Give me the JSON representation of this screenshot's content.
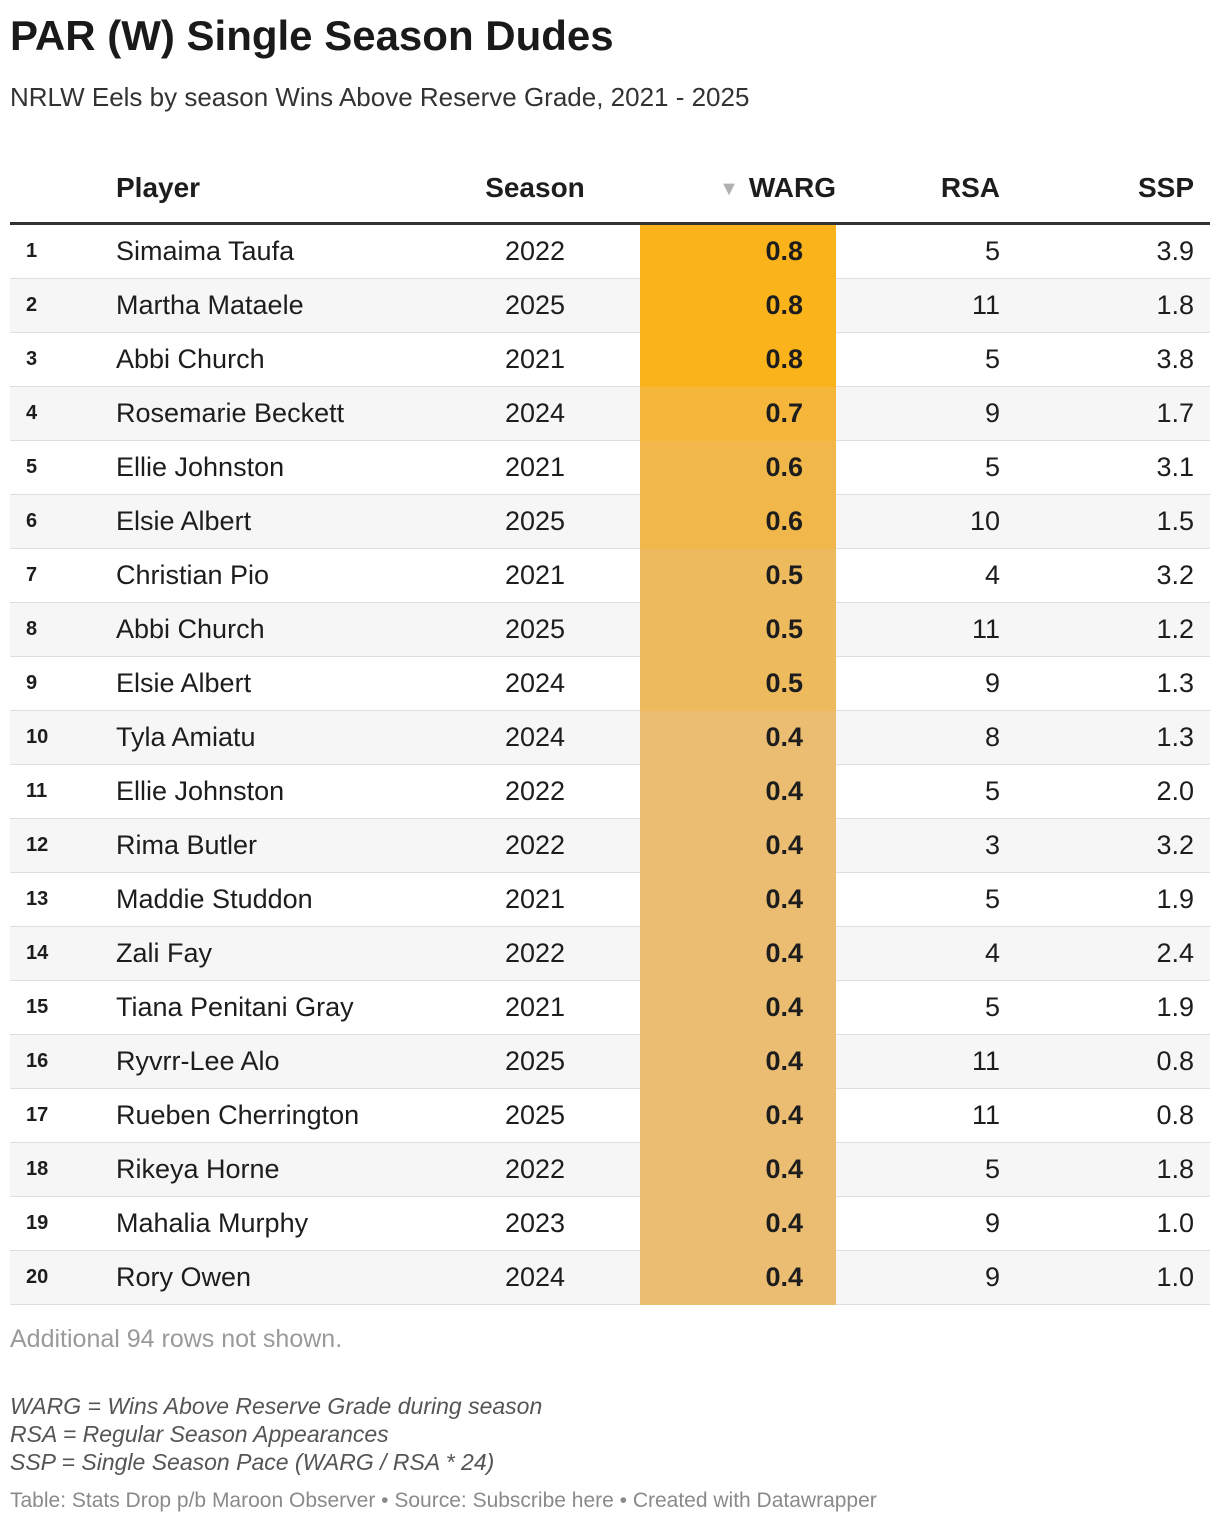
{
  "title": "PAR (W) Single Season Dudes",
  "subtitle": "NRLW Eels by season Wins Above Reserve Grade, 2021 - 2025",
  "chart_data": {
    "type": "table",
    "columns": [
      "",
      "Player",
      "Season",
      "WARG",
      "RSA",
      "SSP"
    ],
    "sort_indicator": "▼",
    "sorted_column": "WARG",
    "highlight_color_scale": {
      "column": "WARG",
      "low_color": "#eabd72",
      "high_color": "#fbb31b"
    },
    "rows": [
      {
        "rank": "1",
        "player": "Simaima Taufa",
        "season": "2022",
        "warg": "0.8",
        "rsa": "5",
        "ssp": "3.9",
        "color": "#fbb31b"
      },
      {
        "rank": "2",
        "player": "Martha Mataele",
        "season": "2025",
        "warg": "0.8",
        "rsa": "11",
        "ssp": "1.8",
        "color": "#fbb31b"
      },
      {
        "rank": "3",
        "player": "Abbi Church",
        "season": "2021",
        "warg": "0.8",
        "rsa": "5",
        "ssp": "3.8",
        "color": "#fbb31b"
      },
      {
        "rank": "4",
        "player": "Rosemarie Beckett",
        "season": "2024",
        "warg": "0.7",
        "rsa": "9",
        "ssp": "1.7",
        "color": "#f5b63b"
      },
      {
        "rank": "5",
        "player": "Ellie Johnston",
        "season": "2021",
        "warg": "0.6",
        "rsa": "5",
        "ssp": "3.1",
        "color": "#f2b74a"
      },
      {
        "rank": "6",
        "player": "Elsie Albert",
        "season": "2025",
        "warg": "0.6",
        "rsa": "10",
        "ssp": "1.5",
        "color": "#f2b74a"
      },
      {
        "rank": "7",
        "player": "Christian Pio",
        "season": "2021",
        "warg": "0.5",
        "rsa": "4",
        "ssp": "3.2",
        "color": "#eeba5e"
      },
      {
        "rank": "8",
        "player": "Abbi Church",
        "season": "2025",
        "warg": "0.5",
        "rsa": "11",
        "ssp": "1.2",
        "color": "#eeba5e"
      },
      {
        "rank": "9",
        "player": "Elsie Albert",
        "season": "2024",
        "warg": "0.5",
        "rsa": "9",
        "ssp": "1.3",
        "color": "#eeba5e"
      },
      {
        "rank": "10",
        "player": "Tyla Amiatu",
        "season": "2024",
        "warg": "0.4",
        "rsa": "8",
        "ssp": "1.3",
        "color": "#eabd72"
      },
      {
        "rank": "11",
        "player": "Ellie Johnston",
        "season": "2022",
        "warg": "0.4",
        "rsa": "5",
        "ssp": "2.0",
        "color": "#eabd72"
      },
      {
        "rank": "12",
        "player": "Rima Butler",
        "season": "2022",
        "warg": "0.4",
        "rsa": "3",
        "ssp": "3.2",
        "color": "#eabd72"
      },
      {
        "rank": "13",
        "player": "Maddie Studdon",
        "season": "2021",
        "warg": "0.4",
        "rsa": "5",
        "ssp": "1.9",
        "color": "#eabd72"
      },
      {
        "rank": "14",
        "player": "Zali Fay",
        "season": "2022",
        "warg": "0.4",
        "rsa": "4",
        "ssp": "2.4",
        "color": "#eabd72"
      },
      {
        "rank": "15",
        "player": "Tiana Penitani Gray",
        "season": "2021",
        "warg": "0.4",
        "rsa": "5",
        "ssp": "1.9",
        "color": "#eabd72"
      },
      {
        "rank": "16",
        "player": "Ryvrr-Lee Alo",
        "season": "2025",
        "warg": "0.4",
        "rsa": "11",
        "ssp": "0.8",
        "color": "#eabd72"
      },
      {
        "rank": "17",
        "player": "Rueben Cherrington",
        "season": "2025",
        "warg": "0.4",
        "rsa": "11",
        "ssp": "0.8",
        "color": "#eabd72"
      },
      {
        "rank": "18",
        "player": "Rikeya Horne",
        "season": "2022",
        "warg": "0.4",
        "rsa": "5",
        "ssp": "1.8",
        "color": "#eabd72"
      },
      {
        "rank": "19",
        "player": "Mahalia Murphy",
        "season": "2023",
        "warg": "0.4",
        "rsa": "9",
        "ssp": "1.0",
        "color": "#eabd72"
      },
      {
        "rank": "20",
        "player": "Rory Owen",
        "season": "2024",
        "warg": "0.4",
        "rsa": "9",
        "ssp": "1.0",
        "color": "#eabd72"
      }
    ]
  },
  "not_shown": "Additional 94 rows not shown.",
  "notes": [
    "WARG = Wins Above Reserve Grade during season",
    "RSA = Regular Season Appearances",
    "SSP = Single Season Pace (WARG / RSA * 24)"
  ],
  "footer": "Table: Stats Drop p/b Maroon Observer • Source: Subscribe here • Created with Datawrapper"
}
